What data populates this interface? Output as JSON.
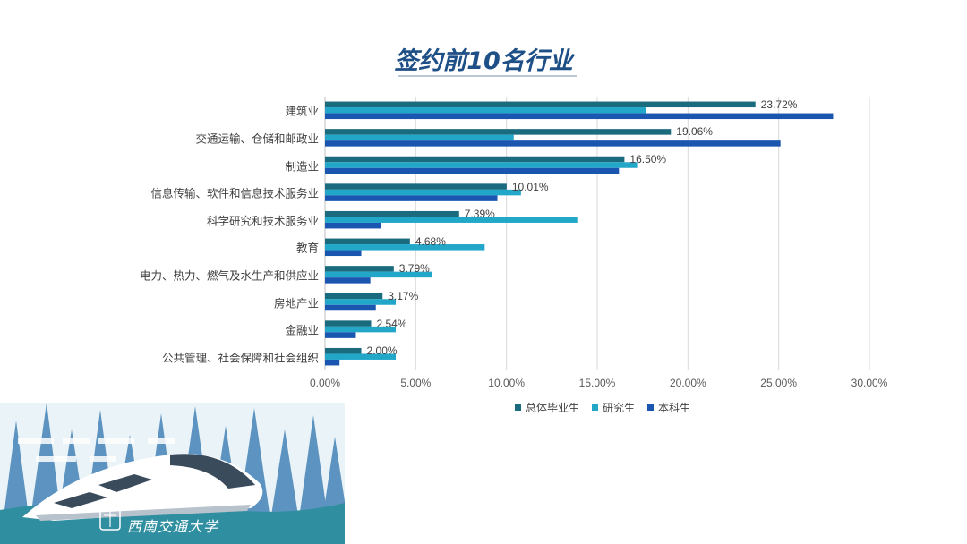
{
  "slide": {
    "title": "签约前10名行业",
    "logo_text": "西南交通大学"
  },
  "chart_data": {
    "type": "bar",
    "orientation": "horizontal",
    "title": "",
    "categories": [
      "建筑业",
      "交通运输、仓储和邮政业",
      "制造业",
      "信息传输、软件和信息技术服务业",
      "科学研究和技术服务业",
      "教育",
      "电力、热力、燃气及水生产和供应业",
      "房地产业",
      "金融业",
      "公共管理、社会保障和社会组织"
    ],
    "series": [
      {
        "name": "总体毕业生",
        "color": "#1b6b7e",
        "values": [
          23.72,
          19.06,
          16.5,
          10.01,
          7.39,
          4.68,
          3.79,
          3.17,
          2.54,
          2.0
        ]
      },
      {
        "name": "研究生",
        "color": "#22a7c9",
        "values": [
          17.7,
          10.4,
          17.2,
          10.8,
          13.9,
          8.8,
          5.9,
          3.9,
          3.9,
          3.9
        ]
      },
      {
        "name": "本科生",
        "color": "#1a56b0",
        "values": [
          28.0,
          25.1,
          16.2,
          9.5,
          3.1,
          2.0,
          2.5,
          2.8,
          1.7,
          0.8
        ]
      }
    ],
    "data_labels": [
      "23.72%",
      "19.06%",
      "16.50%",
      "10.01%",
      "7.39%",
      "4.68%",
      "3.79%",
      "3.17%",
      "2.54%",
      "2.00%"
    ],
    "x_ticks": [
      "0.00%",
      "5.00%",
      "10.00%",
      "15.00%",
      "20.00%",
      "25.00%",
      "30.00%"
    ],
    "xlim": [
      0,
      30
    ],
    "xlabel": "",
    "ylabel": "",
    "grid": true,
    "legend_position": "bottom"
  }
}
